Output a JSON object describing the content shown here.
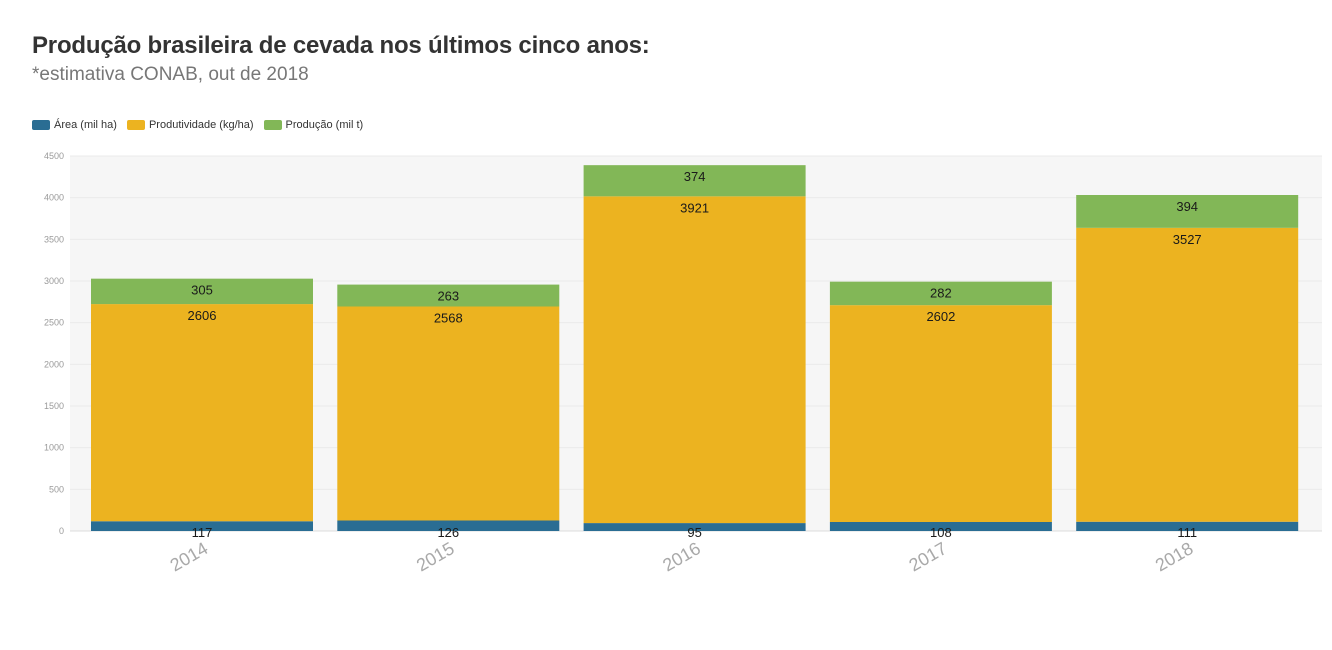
{
  "chart_data": {
    "type": "bar",
    "stacked": true,
    "title": "Produção brasileira de cevada nos últimos cinco anos:",
    "subtitle": "*estimativa CONAB, out de 2018",
    "categories": [
      "2014",
      "2015",
      "2016",
      "2017",
      "2018"
    ],
    "series": [
      {
        "name": "Área (mil ha)",
        "color": "#2a6d93",
        "values": [
          117,
          126,
          95,
          108,
          111
        ]
      },
      {
        "name": "Produtividade (kg/ha)",
        "color": "#ecb320",
        "values": [
          2606,
          2568,
          3921,
          2602,
          3527
        ]
      },
      {
        "name": "Produção (mil t)",
        "color": "#82b757",
        "values": [
          305,
          263,
          374,
          282,
          394
        ]
      }
    ],
    "ylim": [
      0,
      4500
    ],
    "yticks": [
      0,
      500,
      1000,
      1500,
      2000,
      2500,
      3000,
      3500,
      4000,
      4500
    ],
    "grid": true,
    "legend_position": "top-left",
    "xlabel": "",
    "ylabel": ""
  }
}
